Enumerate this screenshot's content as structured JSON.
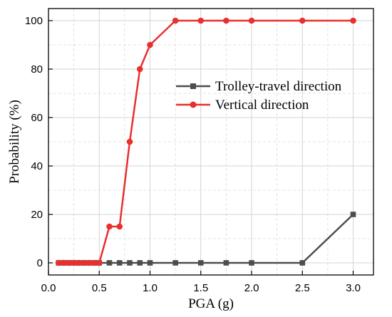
{
  "chart_data": {
    "type": "line",
    "xlabel": "PGA (g)",
    "ylabel": "Probability (%)",
    "xlim": [
      0.0,
      3.2
    ],
    "ylim": [
      -5,
      105
    ],
    "xticks": [
      "0.0",
      "0.5",
      "1.0",
      "1.5",
      "2.0",
      "2.5",
      "3.0"
    ],
    "yticks": [
      "0",
      "20",
      "40",
      "60",
      "80",
      "100"
    ],
    "grid": true,
    "legend_position": "center-right",
    "series": [
      {
        "name": "Trolley-travel direction",
        "color": "#4d4d4d",
        "marker": "square",
        "x": [
          0.1,
          0.15,
          0.2,
          0.25,
          0.3,
          0.35,
          0.4,
          0.45,
          0.5,
          0.6,
          0.7,
          0.8,
          0.9,
          1.0,
          1.25,
          1.5,
          1.75,
          2.0,
          2.5,
          3.0
        ],
        "y": [
          0,
          0,
          0,
          0,
          0,
          0,
          0,
          0,
          0,
          0,
          0,
          0,
          0,
          0,
          0,
          0,
          0,
          0,
          0,
          20
        ]
      },
      {
        "name": "Vertical direction",
        "color": "#e8302e",
        "marker": "circle",
        "x": [
          0.1,
          0.15,
          0.2,
          0.25,
          0.3,
          0.35,
          0.4,
          0.45,
          0.5,
          0.6,
          0.7,
          0.8,
          0.9,
          1.0,
          1.25,
          1.5,
          1.75,
          2.0,
          2.5,
          3.0
        ],
        "y": [
          0,
          0,
          0,
          0,
          0,
          0,
          0,
          0,
          0,
          15,
          15,
          50,
          80,
          90,
          100,
          100,
          100,
          100,
          100,
          100
        ]
      }
    ]
  }
}
